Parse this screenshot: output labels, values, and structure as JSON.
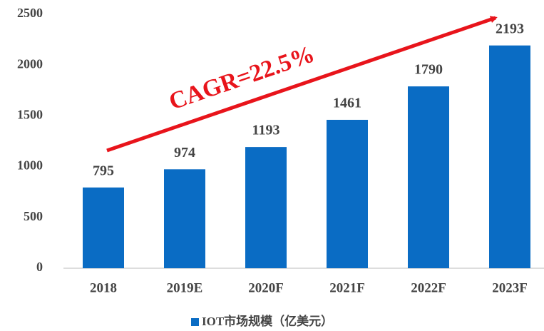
{
  "chart_data": {
    "type": "bar",
    "categories": [
      "2018",
      "2019E",
      "2020F",
      "2021F",
      "2022F",
      "2023F"
    ],
    "series": [
      {
        "name": "IOT市场规模（亿美元）",
        "color": "#0a6cc4",
        "values": [
          795,
          974,
          1193,
          1461,
          1790,
          2193
        ]
      }
    ],
    "ylim": [
      0,
      2500
    ],
    "yticks": [
      0,
      500,
      1000,
      1500,
      2000,
      2500
    ],
    "annotation": "CAGR=22.5%",
    "annotation_color": "#e8141b",
    "legend": "bottom"
  }
}
